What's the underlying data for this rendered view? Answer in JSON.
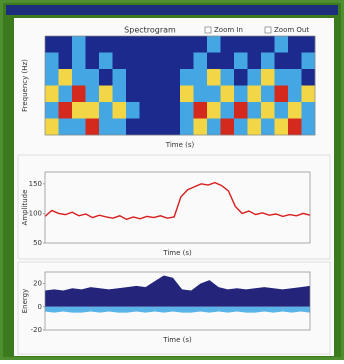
{
  "window": {
    "checkboxes": [
      "Zoom In",
      "Zoom Out"
    ]
  },
  "chart_data": [
    {
      "type": "heatmap",
      "title": "Spectrogram",
      "xlabel": "Time (s)",
      "ylabel": "Frequency (Hz)",
      "colors": [
        "#1b2a8c",
        "#45a6e4",
        "#f2d646",
        "#d42a1e"
      ],
      "values": [
        [
          0,
          0,
          1,
          0,
          0,
          0,
          0,
          0,
          0,
          0,
          0,
          0,
          1,
          0,
          0,
          0,
          0,
          1,
          0,
          0
        ],
        [
          1,
          0,
          1,
          0,
          1,
          0,
          0,
          0,
          0,
          0,
          0,
          1,
          0,
          0,
          1,
          0,
          1,
          0,
          0,
          1
        ],
        [
          1,
          2,
          1,
          1,
          0,
          1,
          0,
          0,
          0,
          0,
          1,
          1,
          2,
          1,
          0,
          1,
          2,
          1,
          1,
          0
        ],
        [
          2,
          1,
          3,
          1,
          2,
          1,
          0,
          0,
          0,
          0,
          2,
          1,
          1,
          2,
          1,
          2,
          1,
          3,
          1,
          2
        ],
        [
          1,
          3,
          2,
          2,
          1,
          2,
          1,
          0,
          0,
          0,
          1,
          3,
          2,
          1,
          3,
          1,
          2,
          1,
          2,
          1
        ],
        [
          2,
          1,
          1,
          3,
          1,
          1,
          0,
          0,
          0,
          0,
          1,
          2,
          1,
          3,
          1,
          2,
          1,
          2,
          3,
          1
        ]
      ]
    },
    {
      "type": "line",
      "xlabel": "Time (s)",
      "ylabel": "Amplitude",
      "color": "#d81e1e",
      "ylim": [
        50,
        170
      ],
      "yticks": [
        50,
        100,
        150
      ],
      "values": [
        95,
        105,
        100,
        98,
        102,
        96,
        99,
        93,
        97,
        94,
        92,
        96,
        90,
        94,
        91,
        95,
        93,
        96,
        92,
        94,
        128,
        140,
        145,
        150,
        148,
        152,
        147,
        138,
        112,
        100,
        104,
        98,
        101,
        97,
        99,
        95,
        98,
        96,
        100,
        97
      ]
    },
    {
      "type": "area",
      "xlabel": "Time (s)",
      "ylabel": "Energy",
      "ylim": [
        -20,
        30
      ],
      "yticks": [
        -20,
        0,
        20
      ],
      "series": [
        {
          "color": "#23247a",
          "values": [
            14,
            15,
            14,
            16,
            15,
            17,
            16,
            15,
            16,
            17,
            18,
            17,
            22,
            27,
            25,
            15,
            14,
            20,
            23,
            17,
            15,
            16,
            15,
            16,
            17,
            16,
            15,
            16,
            17,
            18
          ]
        },
        {
          "color": "#5ab4e8",
          "values": [
            -4,
            -5,
            -4,
            -5,
            -5,
            -4,
            -5,
            -4,
            -5,
            -5,
            -4,
            -5,
            -4,
            -5,
            -4,
            -5,
            -5,
            -4,
            -5,
            -4,
            -5,
            -4,
            -5,
            -5,
            -4,
            -5,
            -4,
            -5,
            -4,
            -5
          ]
        }
      ]
    }
  ]
}
